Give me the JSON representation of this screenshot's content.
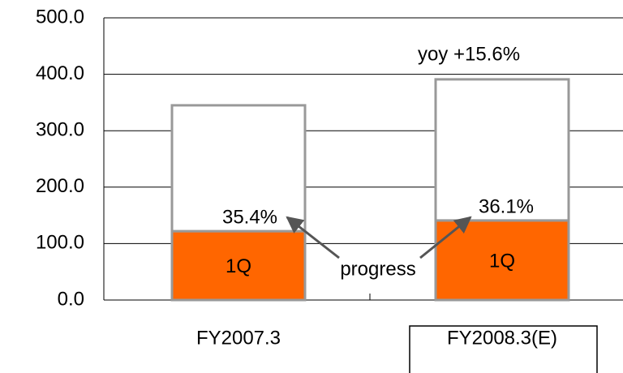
{
  "chart_data": {
    "type": "stacked_bar",
    "categories": [
      "FY2007.3",
      "FY2008.3(E)"
    ],
    "series": [
      {
        "name": "1Q",
        "color": "#ff6600",
        "values": [
          122,
          141
        ]
      },
      {
        "color": "#ffffff",
        "values": [
          223,
          250
        ]
      }
    ],
    "ylim": [
      0,
      500
    ],
    "yticks": [
      {
        "value": 0,
        "label": "0.0"
      },
      {
        "value": 100,
        "label": "100.0"
      },
      {
        "value": 200,
        "label": "200.0"
      },
      {
        "value": 300,
        "label": "300.0"
      },
      {
        "value": 400,
        "label": "400.0"
      },
      {
        "value": 500,
        "label": "500.0"
      }
    ],
    "grid": true,
    "annotations": [
      "35.4%",
      "36.1%",
      "progress",
      "yoy +15.6%"
    ]
  }
}
